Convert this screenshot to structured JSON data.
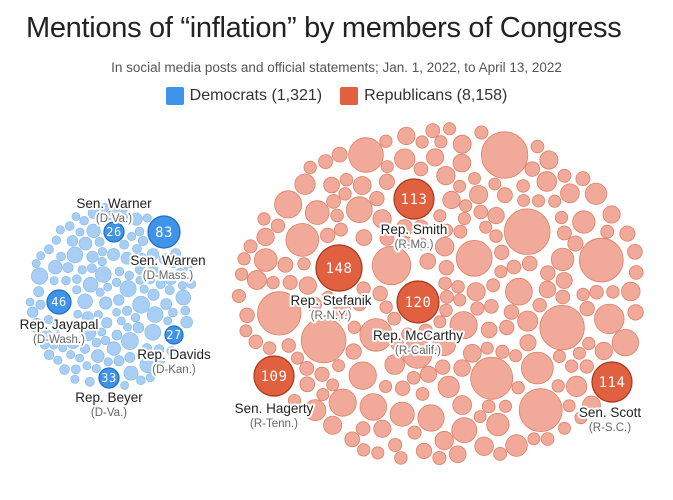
{
  "title": "Mentions of “inflation” by members of Congress",
  "subtitle": "In social media posts and official statements;  Jan. 1, 2022, to April 13, 2022",
  "colors": {
    "democrats": "#3f93e8",
    "democrats_light": "#a8cff3",
    "republicans": "#e0603f",
    "republicans_light": "#f1aa99",
    "highlight_text": "#ffffff"
  },
  "legend": [
    {
      "label": "Democrats (1,321)",
      "color": "#3f93e8"
    },
    {
      "label": "Republicans  (8,158)",
      "color": "#e0603f"
    }
  ],
  "chart_data": {
    "type": "packed-bubble",
    "title": "Mentions of “inflation” by members of Congress",
    "subtitle": "In social media posts and official statements;  Jan. 1, 2022, to April 13, 2022",
    "series": [
      {
        "name": "Democrats",
        "total": 1321,
        "color": "#3f93e8"
      },
      {
        "name": "Republicans",
        "total": 8158,
        "color": "#e0603f"
      }
    ],
    "highlighted": [
      {
        "party": "Democrats",
        "value": 83,
        "name": "Sen. Warren",
        "sub": "(D-Mass.)"
      },
      {
        "party": "Democrats",
        "value": 26,
        "name": "Sen. Warner",
        "sub": "(D-Va.)"
      },
      {
        "party": "Democrats",
        "value": 46,
        "name": "Rep. Jayapal",
        "sub": "(D-Wash.)"
      },
      {
        "party": "Democrats",
        "value": 27,
        "name": "Rep. Davids",
        "sub": "(D-Kan.)"
      },
      {
        "party": "Democrats",
        "value": 33,
        "name": "Rep. Beyer",
        "sub": "(D-Va.)"
      },
      {
        "party": "Republicans",
        "value": 113,
        "name": "Rep. Smith",
        "sub": "(R-Mo.)"
      },
      {
        "party": "Republicans",
        "value": 148,
        "name": "Rep. Stefanik",
        "sub": "(R-N.Y.)"
      },
      {
        "party": "Republicans",
        "value": 120,
        "name": "Rep. McCarthy",
        "sub": "(R-Calif.)"
      },
      {
        "party": "Republicans",
        "value": 109,
        "name": "Sen. Hagerty",
        "sub": "(R-Tenn.)"
      },
      {
        "party": "Republicans",
        "value": 114,
        "name": "Sen. Scott",
        "sub": "(R-S.C.)"
      }
    ]
  }
}
